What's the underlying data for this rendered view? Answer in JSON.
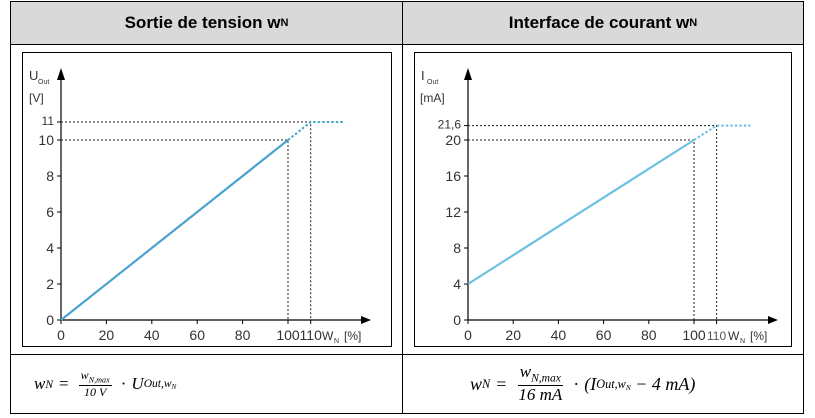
{
  "table": {
    "left_header": {
      "main": "Sortie de tension w",
      "sub": "N"
    },
    "right_header": {
      "main": "Interface de courant w",
      "sub": "N"
    }
  },
  "chart_data": [
    {
      "type": "line",
      "ylabel": {
        "main": "U",
        "sub": "Out",
        "unit": "[V]"
      },
      "xlabel": {
        "main": "W",
        "sub": "N",
        "unit": "[%]"
      },
      "x_ticks": [
        "0",
        "20",
        "40",
        "60",
        "80",
        "100",
        "110"
      ],
      "y_ticks": [
        "0",
        "2",
        "4",
        "6",
        "8",
        "10",
        "11"
      ],
      "xlim": [
        0,
        125
      ],
      "ylim": [
        0,
        12.2
      ],
      "series": [
        {
          "style": "solid",
          "x": [
            0,
            100
          ],
          "y": [
            0,
            10
          ]
        },
        {
          "style": "dotted",
          "x": [
            100,
            110,
            125
          ],
          "y": [
            10,
            11,
            11
          ]
        }
      ],
      "reference_lines": [
        {
          "x": 100,
          "y": 10
        },
        {
          "x": 110,
          "y": 11
        }
      ],
      "line_color": "#4aa3cf"
    },
    {
      "type": "line",
      "ylabel": {
        "main": "I",
        "sub": "Out",
        "unit": "[mA]"
      },
      "xlabel": {
        "main": "W",
        "sub": "N",
        "unit": "[%]"
      },
      "x_ticks": [
        "0",
        "20",
        "40",
        "60",
        "80",
        "100",
        "110"
      ],
      "y_ticks": [
        "4",
        "8",
        "12",
        "16",
        "20",
        "21,6"
      ],
      "y_zero_label": "0",
      "xlim": [
        0,
        125
      ],
      "ylim": [
        0,
        24
      ],
      "series": [
        {
          "style": "solid",
          "x": [
            0,
            100
          ],
          "y": [
            4,
            20
          ]
        },
        {
          "style": "dotted",
          "x": [
            100,
            110,
            125
          ],
          "y": [
            20,
            21.6,
            21.6
          ]
        }
      ],
      "reference_lines": [
        {
          "x": 100,
          "y": 20
        },
        {
          "x": 110,
          "y": 21.6
        }
      ],
      "line_color": "#6cc0e0"
    }
  ],
  "formulas": {
    "left": {
      "lhs": "w",
      "lhs_sub": "N",
      "eq": "=",
      "num": "w",
      "num_sub": "N,max",
      "den": "10 V",
      "dot": "·",
      "rhs": "U",
      "rhs_sub": "Out,w",
      "rhs_sub2": "N"
    },
    "right": {
      "lhs": "w",
      "lhs_sub": "N",
      "eq": "=",
      "num": "w",
      "num_sub": "N,max",
      "den": "16 mA",
      "dot": "·",
      "open": "(I",
      "rhs_sub": "Out,w",
      "rhs_sub2": "N",
      "tail": " − 4 mA)"
    }
  }
}
